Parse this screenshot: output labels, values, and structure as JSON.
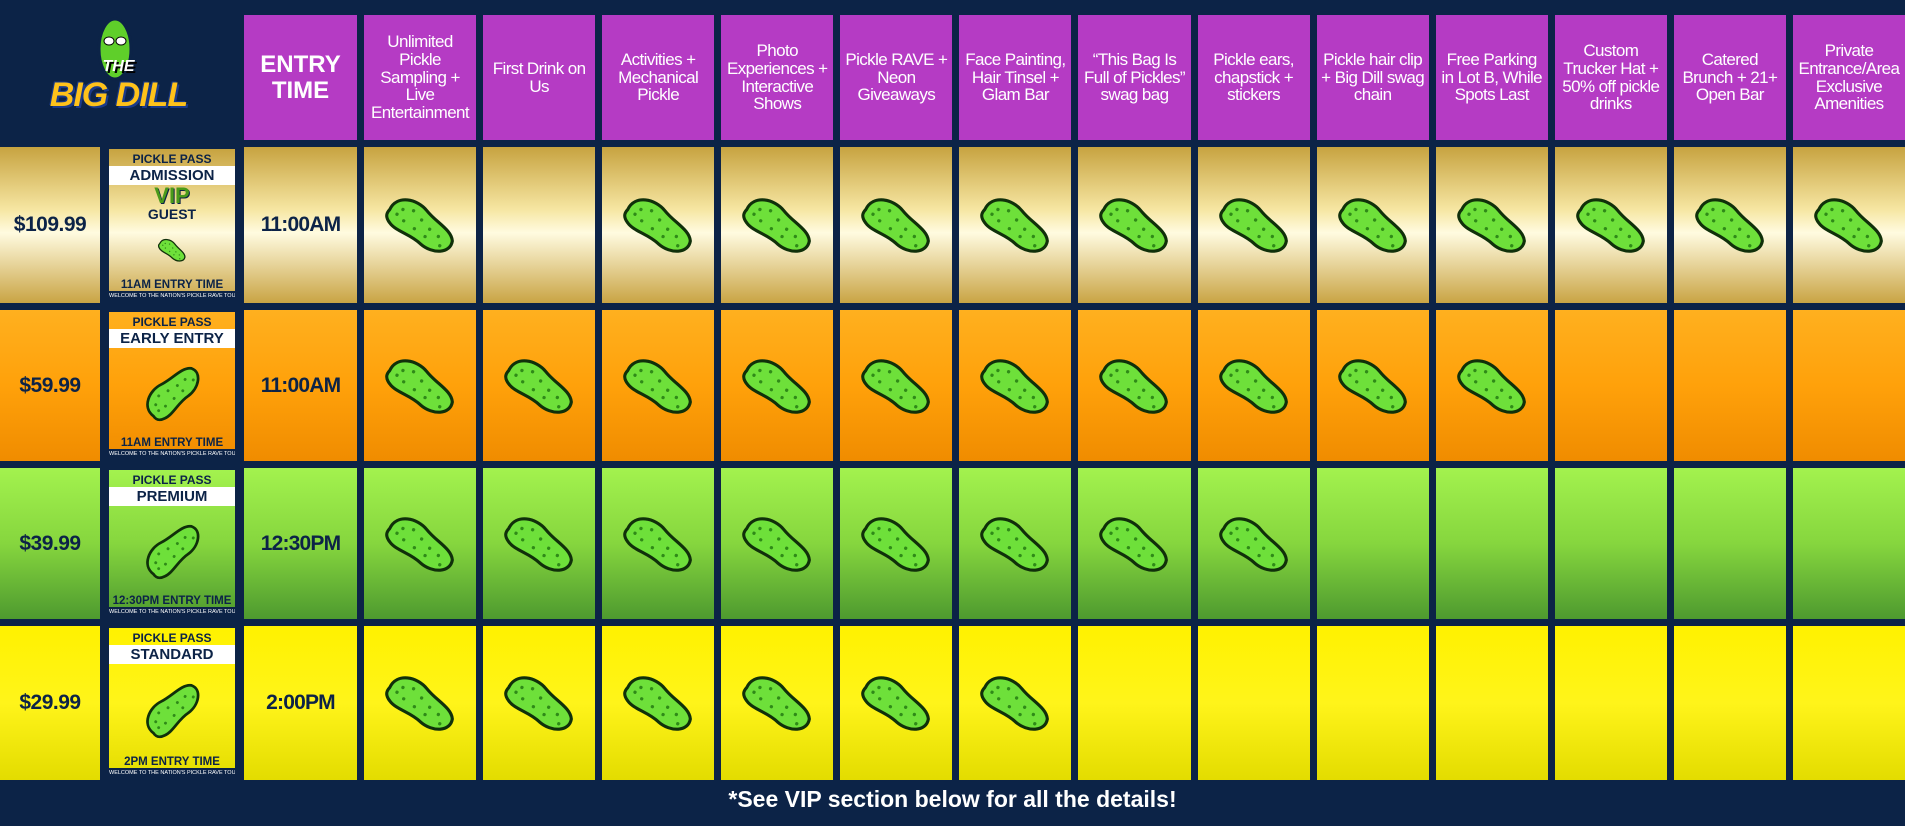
{
  "logo": {
    "small": "THE",
    "name": "BIG DILL"
  },
  "header": {
    "entry_time": "ENTRY TIME",
    "features": [
      "Unlimited Pickle Sampling + Live Entertainment",
      "First Drink on Us",
      "Activities + Mechanical Pickle",
      "Photo Experiences + Interactive Shows",
      "Pickle RAVE + Neon Giveaways",
      "Face Painting, Hair Tinsel + Glam Bar",
      "“This Bag Is Full of Pickles” swag bag",
      "Pickle ears, chapstick + stickers",
      "Pickle hair clip + Big Dill swag chain",
      "Free Parking in Lot B, While Spots Last",
      "Custom Trucker Hat + 50% off pickle drinks",
      "Catered Brunch + 21+ Open Bar",
      "Private Entrance/Area Exclusive Amenities"
    ]
  },
  "tiers": [
    {
      "price": "$109.99",
      "card": {
        "top": "PICKLE PASS",
        "name": "ADMISSION",
        "extra": [
          "VIP",
          "GUEST"
        ],
        "entry": "11AM ENTRY TIME",
        "tagline": "WELCOME TO THE NATION'S PICKLE RAVE TOUR"
      },
      "entry_time": "11:00AM",
      "includes": [
        true,
        false,
        true,
        true,
        true,
        true,
        true,
        true,
        true,
        true,
        true,
        true,
        true
      ]
    },
    {
      "price": "$59.99",
      "card": {
        "top": "PICKLE PASS",
        "name": "EARLY ENTRY",
        "entry": "11AM ENTRY TIME",
        "tagline": "WELCOME TO THE NATION'S PICKLE RAVE TOUR"
      },
      "entry_time": "11:00AM",
      "includes": [
        true,
        true,
        true,
        true,
        true,
        true,
        true,
        true,
        true,
        true,
        false,
        false,
        false
      ]
    },
    {
      "price": "$39.99",
      "card": {
        "top": "PICKLE PASS",
        "name": "PREMIUM",
        "entry": "12:30PM ENTRY TIME",
        "tagline": "WELCOME TO THE NATION'S PICKLE RAVE TOUR"
      },
      "entry_time": "12:30PM",
      "includes": [
        true,
        true,
        true,
        true,
        true,
        true,
        true,
        true,
        false,
        false,
        false,
        false,
        false
      ]
    },
    {
      "price": "$29.99",
      "card": {
        "top": "PICKLE PASS",
        "name": "STANDARD",
        "entry": "2PM ENTRY TIME",
        "tagline": "WELCOME TO THE NATION'S PICKLE RAVE TOUR"
      },
      "entry_time": "2:00PM",
      "includes": [
        true,
        true,
        true,
        true,
        true,
        true,
        false,
        false,
        false,
        false,
        false,
        false,
        false
      ]
    }
  ],
  "footer": "*See VIP section below for all the details!"
}
